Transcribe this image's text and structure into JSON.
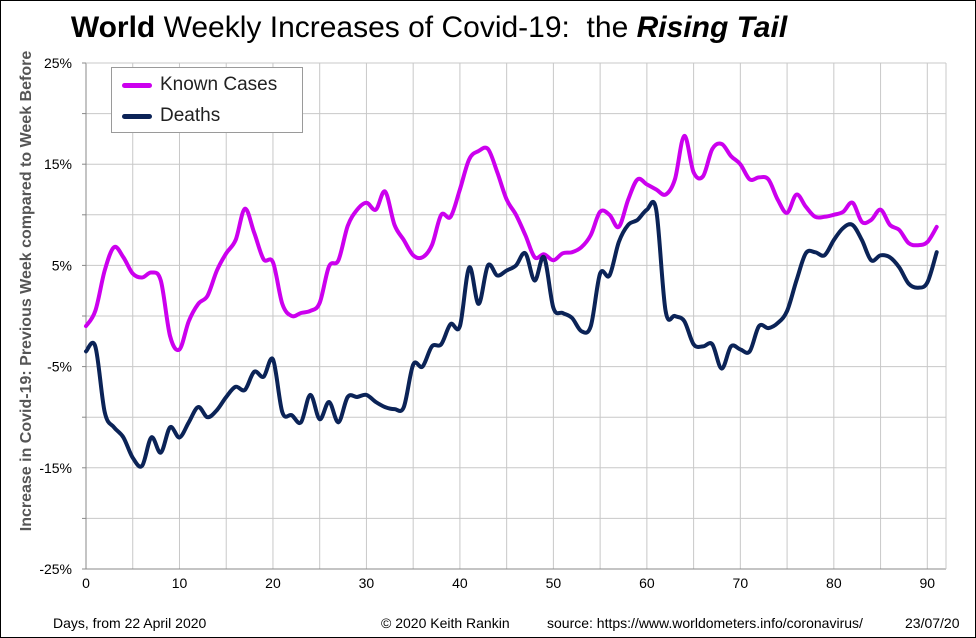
{
  "title": {
    "part1": "World",
    "part2": " Weekly Increases of Covid-19:  the ",
    "part3": "Rising Tail"
  },
  "footer": {
    "xlabel": "Days, from 22 April 2020",
    "copyright": "© 2020  Keith Rankin",
    "source": "source:  https://www.worldometers.info/coronavirus/",
    "date": "23/07/20"
  },
  "colors": {
    "cases": "#cc00ee",
    "deaths": "#0b2357",
    "grid": "#c8c8c8"
  },
  "chart_data": {
    "type": "line",
    "title": "World Weekly Increases of Covid-19:  the Rising Tail",
    "xlabel": "Days, from 22 April 2020",
    "ylabel": "Increase in Covid-19: Previous Week compared to Week Before",
    "xlim": [
      0,
      92
    ],
    "ylim": [
      -25,
      25
    ],
    "x_ticks": [
      0,
      10,
      20,
      30,
      40,
      50,
      60,
      70,
      80,
      90
    ],
    "y_ticks": [
      25,
      15,
      5,
      -5,
      -15,
      -25
    ],
    "y_tick_labels": [
      "25%",
      "15%",
      "5%",
      "-5%",
      "-15%",
      "-25%"
    ],
    "grid": true,
    "legend": "top-left",
    "series": [
      {
        "name": "Known Cases",
        "x": [
          0,
          1,
          2,
          3,
          4,
          5,
          6,
          7,
          8,
          9,
          10,
          11,
          12,
          13,
          14,
          15,
          16,
          17,
          18,
          19,
          20,
          21,
          22,
          23,
          24,
          25,
          26,
          27,
          28,
          29,
          30,
          31,
          32,
          33,
          34,
          35,
          36,
          37,
          38,
          39,
          40,
          41,
          42,
          43,
          44,
          45,
          46,
          47,
          48,
          49,
          50,
          51,
          52,
          53,
          54,
          55,
          56,
          57,
          58,
          59,
          60,
          61,
          62,
          63,
          64,
          65,
          66,
          67,
          68,
          69,
          70,
          71,
          72,
          73,
          74,
          75,
          76,
          77,
          78,
          79,
          80,
          81,
          82,
          83,
          84,
          85,
          86,
          87,
          88,
          89,
          90,
          91
        ],
        "values": [
          -1,
          0.5,
          4.5,
          6.8,
          5.8,
          4.2,
          3.8,
          4.3,
          3.5,
          -2,
          -3.3,
          -0.5,
          1.2,
          2,
          4.5,
          6.2,
          7.5,
          10.6,
          8.2,
          5.6,
          5.3,
          1.2,
          0,
          0.3,
          0.5,
          1.3,
          4.9,
          5.5,
          8.9,
          10.5,
          11.2,
          10.5,
          12.3,
          9,
          7.5,
          6,
          5.8,
          7,
          10,
          9.8,
          12.5,
          15.5,
          16.3,
          16.5,
          14.2,
          11.5,
          10,
          8,
          5.8,
          6.1,
          5.5,
          6.2,
          6.3,
          6.8,
          8,
          10.3,
          10,
          8.8,
          11.5,
          13.5,
          13,
          12.5,
          12,
          13.5,
          17.8,
          14.2,
          13.8,
          16.5,
          17,
          15.8,
          15,
          13.5,
          13.7,
          13.5,
          11.5,
          10.2,
          12,
          10.8,
          9.8,
          9.8,
          10,
          10.3,
          11.2,
          9.3,
          9.5,
          10.5,
          9,
          8.5,
          7.2,
          7,
          7.3,
          8.8
        ]
      },
      {
        "name": "Deaths",
        "x": [
          0,
          1,
          2,
          3,
          4,
          5,
          6,
          7,
          8,
          9,
          10,
          11,
          12,
          13,
          14,
          15,
          16,
          17,
          18,
          19,
          20,
          21,
          22,
          23,
          24,
          25,
          26,
          27,
          28,
          29,
          30,
          31,
          32,
          33,
          34,
          35,
          36,
          37,
          38,
          39,
          40,
          41,
          42,
          43,
          44,
          45,
          46,
          47,
          48,
          49,
          50,
          51,
          52,
          53,
          54,
          55,
          56,
          57,
          58,
          59,
          60,
          61,
          62,
          63,
          64,
          65,
          66,
          67,
          68,
          69,
          70,
          71,
          72,
          73,
          74,
          75,
          76,
          77,
          78,
          79,
          80,
          81,
          82,
          83,
          84,
          85,
          86,
          87,
          88,
          89,
          90,
          91
        ],
        "values": [
          -3.5,
          -3,
          -9.5,
          -11,
          -12,
          -14,
          -14.8,
          -12,
          -13.5,
          -11,
          -12,
          -10.5,
          -9,
          -10,
          -9.3,
          -8,
          -7,
          -7.3,
          -5.5,
          -6,
          -4.3,
          -9.5,
          -9.8,
          -10.5,
          -7.8,
          -10.2,
          -8.5,
          -10.5,
          -8,
          -8,
          -7.8,
          -8.5,
          -9,
          -9.2,
          -9,
          -4.8,
          -5,
          -3,
          -2.8,
          -0.8,
          -1,
          4.8,
          1.2,
          5,
          4,
          4.5,
          5,
          6.2,
          3.5,
          5.8,
          0.8,
          0.3,
          -0.2,
          -1.5,
          -1,
          4.2,
          4,
          7.3,
          9,
          9.5,
          10.5,
          10.5,
          0.5,
          0,
          -0.5,
          -2.8,
          -3,
          -2.8,
          -5.2,
          -3,
          -3.3,
          -3.5,
          -1,
          -1.2,
          -0.7,
          0.5,
          3.5,
          6.2,
          6.3,
          6,
          7.5,
          8.7,
          9,
          7.5,
          5.5,
          6,
          5.8,
          4.8,
          3.2,
          2.8,
          3.3,
          6.3
        ]
      }
    ]
  }
}
